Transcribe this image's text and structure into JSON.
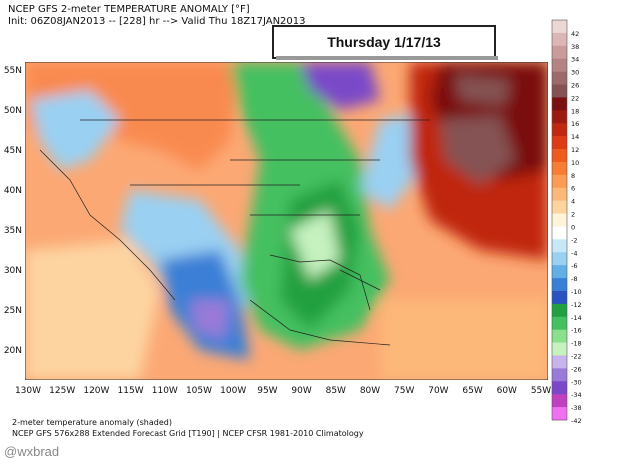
{
  "header": {
    "line1": "NCEP GFS 2-meter TEMPERATURE ANOMALY [°F]",
    "line2": "Init: 06Z08JAN2013 -- [228] hr --> Valid Thu 18Z17JAN2013"
  },
  "date_box": "Thursday 1/17/13",
  "map": {
    "lat_labels": [
      "55N",
      "50N",
      "45N",
      "40N",
      "35N",
      "30N",
      "25N",
      "20N"
    ],
    "lon_labels": [
      "130W",
      "125W",
      "120W",
      "115W",
      "110W",
      "105W",
      "100W",
      "95W",
      "90W",
      "85W",
      "80W",
      "75W",
      "70W",
      "65W",
      "60W",
      "55W"
    ]
  },
  "colorbar": {
    "labels": [
      42,
      38,
      34,
      30,
      26,
      22,
      18,
      16,
      14,
      12,
      10,
      8,
      6,
      4,
      2,
      0,
      -2,
      -4,
      -6,
      -8,
      -10,
      -12,
      -14,
      -16,
      -18,
      -22,
      -26,
      -30,
      -34,
      -38,
      -42
    ],
    "colors": [
      "#ecd6d6",
      "#dcb6b6",
      "#c99b9b",
      "#b58383",
      "#9c6a6a",
      "#855353",
      "#7a1010",
      "#9e1a10",
      "#c02810",
      "#dd3c14",
      "#ef5a1e",
      "#f77c36",
      "#fb9c54",
      "#fcb878",
      "#fdd4a0",
      "#fff4d8",
      "#ffffff",
      "#c8e8f8",
      "#9ad0f2",
      "#62aee6",
      "#3a7fd6",
      "#2a52c0",
      "#20a040",
      "#44c060",
      "#8be08c",
      "#c6f2c0",
      "#c8b4ec",
      "#9a7ad8",
      "#7a48c8",
      "#c040c0",
      "#f070f0"
    ]
  },
  "footer": {
    "line1": "2-meter temperature anomaly (shaded)",
    "line2": "NCEP GFS 576x288 Extended Forecast Grid [T190] | NCEP CFSR 1981-2010 Climatology"
  },
  "watermark": "@wxbrad"
}
